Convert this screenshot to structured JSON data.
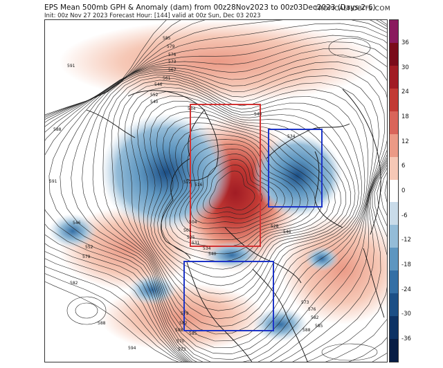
{
  "header": {
    "title": "EPS Mean 500mb GPH & Anomaly (dam) from 00z28Nov2023 to 00z03Dec2023 (Days 2-6)",
    "subtitle": "Init: 00z Nov 27 2023   Forecast Hour: [144]   valid at 00z Sun, Dec 03 2023",
    "credit": "TROPICALTIDBITS.COM"
  },
  "colorbar": {
    "ticks": [
      "36",
      "30",
      "24",
      "18",
      "12",
      "6",
      "0",
      "-6",
      "-12",
      "-18",
      "-24",
      "-30",
      "-36"
    ],
    "colors": [
      "#8a1a5e",
      "#7a0b1a",
      "#a11c24",
      "#c23a34",
      "#d9655a",
      "#eb9a86",
      "#f6c8b6",
      "#ffffff",
      "#c9dbe9",
      "#94bcd8",
      "#5e96c0",
      "#346fa5",
      "#1c4f86",
      "#0d3264",
      "#071d45"
    ]
  },
  "map": {
    "contour_labels": [
      "591",
      "588",
      "585",
      "579",
      "576",
      "573",
      "567",
      "561",
      "546",
      "552",
      "540",
      "534",
      "522",
      "516",
      "504",
      "501",
      "525",
      "531",
      "534",
      "540",
      "546",
      "552",
      "579",
      "582",
      "588",
      "585",
      "591",
      "579",
      "582",
      "588",
      "570",
      "573",
      "540",
      "534",
      "528",
      "546",
      "573",
      "576",
      "582",
      "585",
      "588",
      "594"
    ],
    "annotation_boxes": [
      {
        "name": "north-atlantic-anomaly-box",
        "color": "#d23232"
      },
      {
        "name": "siberia-trough-box",
        "color": "#1c33c8"
      },
      {
        "name": "north-america-box",
        "color": "#1c33c8"
      }
    ]
  }
}
